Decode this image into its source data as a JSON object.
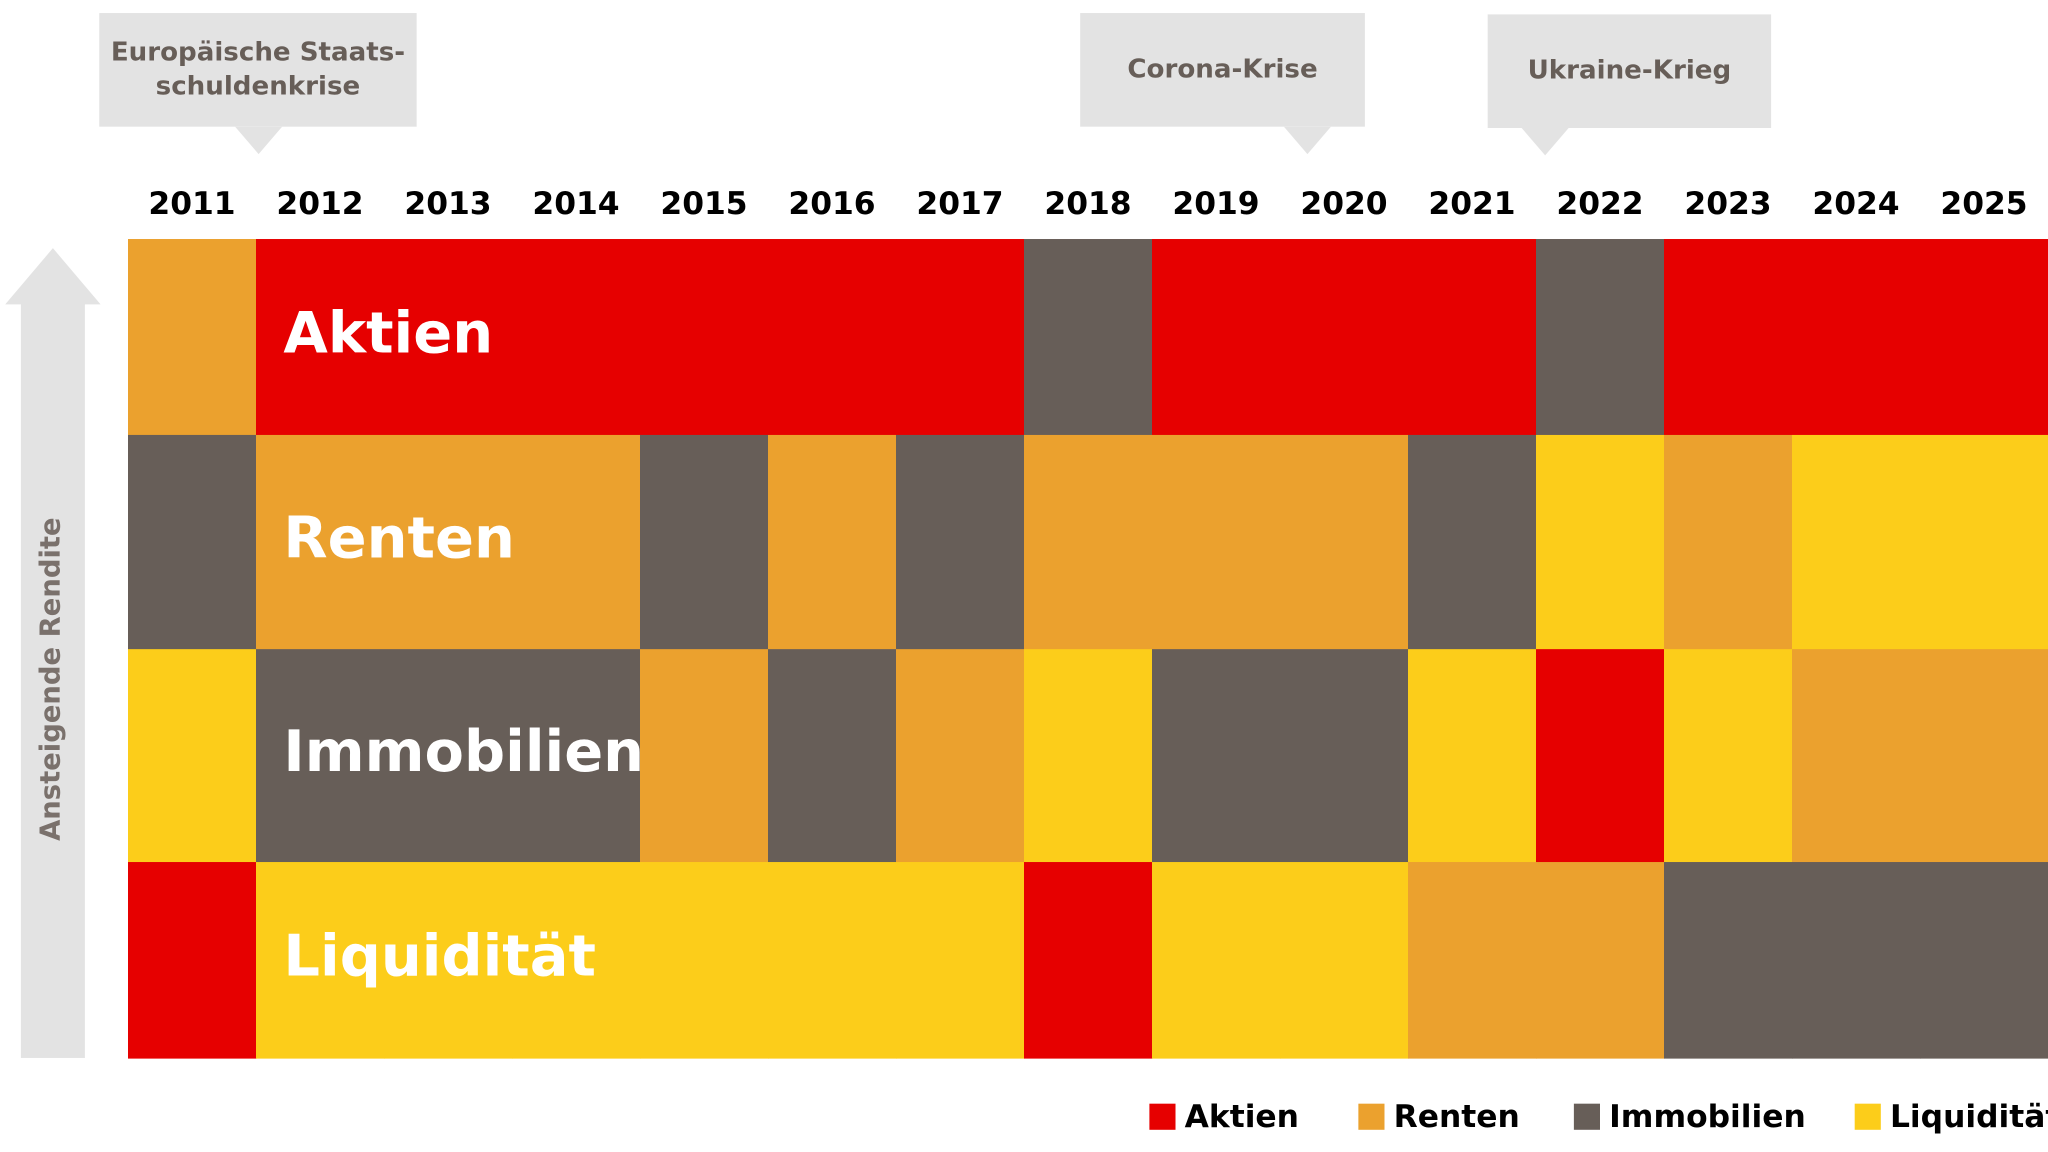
{
  "chart_data": {
    "type": "ranking-grid",
    "axis_label": "Ansteigende Rendite",
    "annotations": [
      {
        "lines": [
          "Europäische Staats-",
          "schuldenkrise"
        ]
      },
      {
        "lines": [
          "Corona-Krise"
        ]
      },
      {
        "lines": [
          "Ukraine-Krieg"
        ]
      }
    ],
    "assets": [
      {
        "name": "Aktien",
        "color": "#e60000"
      },
      {
        "name": "Renten",
        "color": "#eba12e"
      },
      {
        "name": "Immobilien",
        "color": "#675e58"
      },
      {
        "name": "Liquidität",
        "color": "#fccd1a"
      }
    ],
    "categories": [
      "2011",
      "2012",
      "2013",
      "2014",
      "2015",
      "2016",
      "2017",
      "2018",
      "2019",
      "2020",
      "2021",
      "2022",
      "2023",
      "2024",
      "2025"
    ],
    "ranking": [
      [
        "Renten",
        "Immobilien",
        "Liquidität",
        "Aktien"
      ],
      [
        "Aktien",
        "Renten",
        "Immobilien",
        "Liquidität"
      ],
      [
        "Aktien",
        "Renten",
        "Immobilien",
        "Liquidität"
      ],
      [
        "Aktien",
        "Renten",
        "Immobilien",
        "Liquidität"
      ],
      [
        "Aktien",
        "Immobilien",
        "Renten",
        "Liquidität"
      ],
      [
        "Aktien",
        "Renten",
        "Immobilien",
        "Liquidität"
      ],
      [
        "Aktien",
        "Immobilien",
        "Renten",
        "Liquidität"
      ],
      [
        "Immobilien",
        "Renten",
        "Liquidität",
        "Aktien"
      ],
      [
        "Aktien",
        "Renten",
        "Immobilien",
        "Liquidität"
      ],
      [
        "Aktien",
        "Renten",
        "Immobilien",
        "Liquidität"
      ],
      [
        "Aktien",
        "Immobilien",
        "Liquidität",
        "Renten"
      ],
      [
        "Immobilien",
        "Liquidität",
        "Aktien",
        "Renten"
      ],
      [
        "Aktien",
        "Renten",
        "Liquidität",
        "Immobilien"
      ],
      [
        "Aktien",
        "Liquidität",
        "Renten",
        "Immobilien"
      ],
      [
        "Aktien",
        "Liquidität",
        "Renten",
        "Immobilien"
      ]
    ]
  }
}
